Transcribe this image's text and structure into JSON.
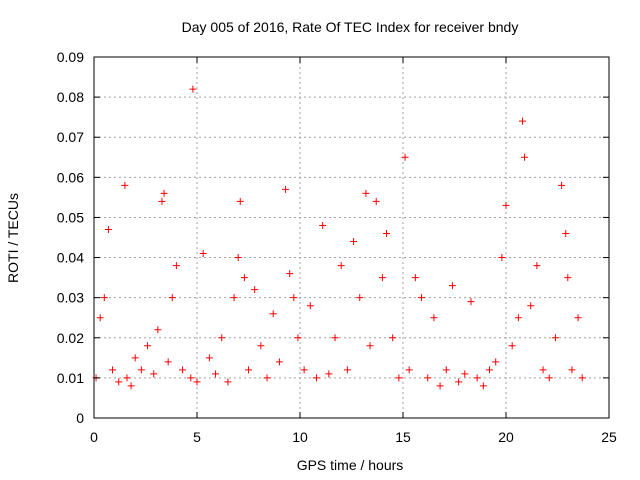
{
  "chart_data": {
    "type": "scatter",
    "title": "Day 005 of 2016, Rate Of TEC Index for receiver bndy",
    "xlabel": "GPS time / hours",
    "ylabel": "ROTI / TECUs",
    "xlim": [
      0,
      25
    ],
    "ylim": [
      0,
      0.09
    ],
    "x_ticks": [
      "0",
      "5",
      "10",
      "15",
      "20",
      "25"
    ],
    "y_ticks": [
      "0",
      "0.01",
      "0.02",
      "0.03",
      "0.04",
      "0.05",
      "0.06",
      "0.07",
      "0.08",
      "0.09"
    ],
    "grid": true,
    "marker": "+",
    "color": "#ff0000",
    "x": [
      0.1,
      0.3,
      0.5,
      0.7,
      0.9,
      1.2,
      1.5,
      1.6,
      1.8,
      2.0,
      2.3,
      2.6,
      2.9,
      3.1,
      3.3,
      3.4,
      3.6,
      3.8,
      4.0,
      4.3,
      4.7,
      4.8,
      5.0,
      5.3,
      5.6,
      5.9,
      6.2,
      6.5,
      6.8,
      7.0,
      7.1,
      7.3,
      7.5,
      7.8,
      8.1,
      8.4,
      8.7,
      9.0,
      9.3,
      9.5,
      9.7,
      9.9,
      10.2,
      10.5,
      10.8,
      11.1,
      11.4,
      11.7,
      12.0,
      12.3,
      12.6,
      12.9,
      13.2,
      13.4,
      13.7,
      14.0,
      14.2,
      14.5,
      14.8,
      15.1,
      15.3,
      15.6,
      15.9,
      16.2,
      16.5,
      16.8,
      17.1,
      17.4,
      17.7,
      18.0,
      18.3,
      18.6,
      18.9,
      19.2,
      19.5,
      19.8,
      20.0,
      20.3,
      20.6,
      20.8,
      20.9,
      21.2,
      21.5,
      21.8,
      22.1,
      22.4,
      22.7,
      22.9,
      23.0,
      23.2,
      23.5,
      23.7
    ],
    "y": [
      0.01,
      0.025,
      0.03,
      0.047,
      0.012,
      0.009,
      0.058,
      0.01,
      0.008,
      0.015,
      0.012,
      0.018,
      0.011,
      0.022,
      0.054,
      0.056,
      0.014,
      0.03,
      0.038,
      0.012,
      0.01,
      0.082,
      0.009,
      0.041,
      0.015,
      0.011,
      0.02,
      0.009,
      0.03,
      0.04,
      0.054,
      0.035,
      0.012,
      0.032,
      0.018,
      0.01,
      0.026,
      0.014,
      0.057,
      0.036,
      0.03,
      0.02,
      0.012,
      0.028,
      0.01,
      0.048,
      0.011,
      0.02,
      0.038,
      0.012,
      0.044,
      0.03,
      0.056,
      0.018,
      0.054,
      0.035,
      0.046,
      0.02,
      0.01,
      0.065,
      0.012,
      0.035,
      0.03,
      0.01,
      0.025,
      0.008,
      0.012,
      0.033,
      0.009,
      0.011,
      0.029,
      0.01,
      0.008,
      0.012,
      0.014,
      0.04,
      0.053,
      0.018,
      0.025,
      0.074,
      0.065,
      0.028,
      0.038,
      0.012,
      0.01,
      0.02,
      0.058,
      0.046,
      0.035,
      0.012,
      0.025,
      0.01
    ]
  }
}
